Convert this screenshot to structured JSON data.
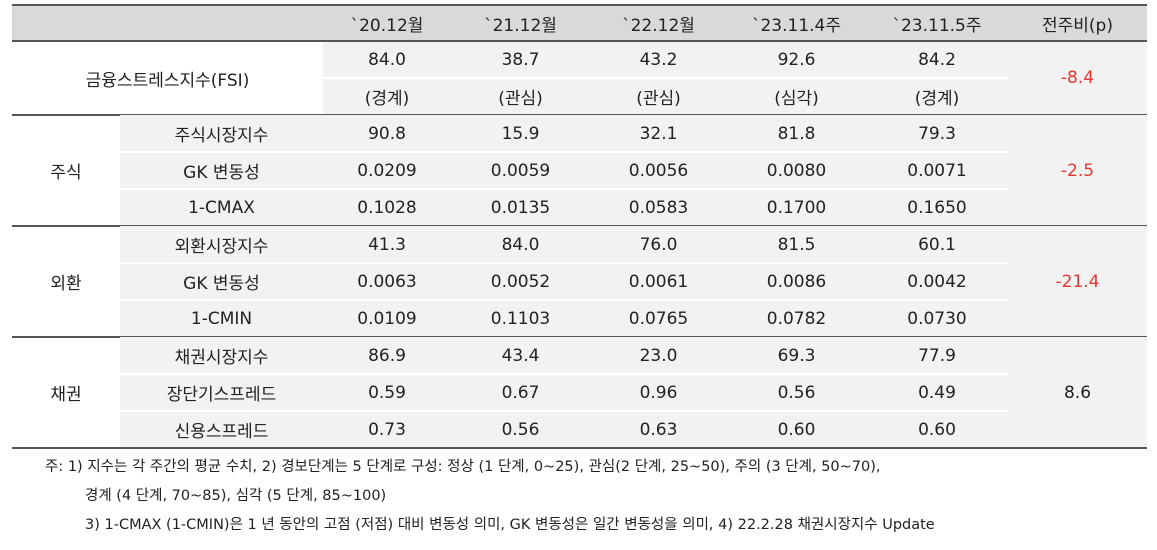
{
  "header": {
    "columns": [
      "`20.12월",
      "`21.12월",
      "`22.12월",
      "`23.11.4주",
      "`23.11.5주",
      "전주비(p)"
    ]
  },
  "fsi": {
    "label": "금융스트레스지수(FSI)",
    "values": [
      "84.0",
      "38.7",
      "43.2",
      "92.6",
      "84.2"
    ],
    "levels": [
      "(경계)",
      "(관심)",
      "(관심)",
      "(심각)",
      "(경계)"
    ],
    "change": "-8.4"
  },
  "groups": [
    {
      "name": "주식",
      "change": "-2.5",
      "rows": [
        {
          "label": "주식시장지수",
          "values": [
            "90.8",
            "15.9",
            "32.1",
            "81.8",
            "79.3"
          ]
        },
        {
          "label": "GK 변동성",
          "values": [
            "0.0209",
            "0.0059",
            "0.0056",
            "0.0080",
            "0.0071"
          ]
        },
        {
          "label": "1-CMAX",
          "values": [
            "0.1028",
            "0.0135",
            "0.0583",
            "0.1700",
            "0.1650"
          ]
        }
      ]
    },
    {
      "name": "외환",
      "change": "-21.4",
      "rows": [
        {
          "label": "외환시장지수",
          "values": [
            "41.3",
            "84.0",
            "76.0",
            "81.5",
            "60.1"
          ]
        },
        {
          "label": "GK 변동성",
          "values": [
            "0.0063",
            "0.0052",
            "0.0061",
            "0.0086",
            "0.0042"
          ]
        },
        {
          "label": "1-CMIN",
          "values": [
            "0.0109",
            "0.1103",
            "0.0765",
            "0.0782",
            "0.0730"
          ]
        }
      ]
    },
    {
      "name": "채권",
      "change": "8.6",
      "rows": [
        {
          "label": "채권시장지수",
          "values": [
            "86.9",
            "43.4",
            "23.0",
            "69.3",
            "77.9"
          ]
        },
        {
          "label": "장단기스프레드",
          "values": [
            "0.59",
            "0.67",
            "0.96",
            "0.56",
            "0.49"
          ]
        },
        {
          "label": "신용스프레드",
          "values": [
            "0.73",
            "0.56",
            "0.63",
            "0.60",
            "0.60"
          ]
        }
      ]
    }
  ],
  "notes": [
    "주: 1) 지수는 각 주간의 평균 수치, 2) 경보단계는 5 단계로 구성: 정상 (1 단계, 0~25), 관심(2 단계, 25~50), 주의 (3 단계, 50~70),",
    "경계 (4 단계, 70~85), 심각 (5 단계, 85~100)",
    "3) 1-CMAX (1-CMIN)은 1 년 동안의 고점 (저점) 대비 변동성 의미, GK 변동성은 일간 변동성을 의미, 4) 22.2.28 채권시장지수 Update"
  ]
}
